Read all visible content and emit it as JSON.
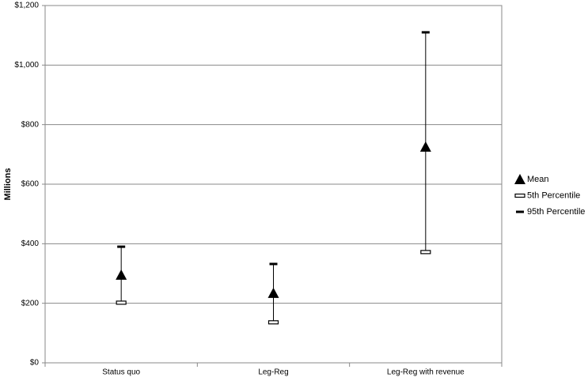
{
  "chart_data": {
    "type": "range",
    "y_label": "Millions",
    "categories": [
      "Status quo",
      "Leg-Reg",
      "Leg-Reg with revenue"
    ],
    "series": [
      {
        "name": "Mean",
        "color": "#000000",
        "marker": "triangle",
        "values": [
          295,
          234,
          725
        ]
      },
      {
        "name": "5th Percentile",
        "color": "#000000",
        "marker": "hollow-dash",
        "values": [
          202,
          136,
          372
        ]
      },
      {
        "name": "95th Percentile",
        "color": "#000000",
        "marker": "dash",
        "values": [
          390,
          332,
          1110
        ]
      }
    ],
    "ylim": [
      0,
      1200
    ],
    "yticks": [
      {
        "value": 0,
        "label": "$0"
      },
      {
        "value": 200,
        "label": "$200"
      },
      {
        "value": 400,
        "label": "$400"
      },
      {
        "value": 600,
        "label": "$600"
      },
      {
        "value": 800,
        "label": "$800"
      },
      {
        "value": 1000,
        "label": "$1,000"
      },
      {
        "value": 1200,
        "label": "$1,200"
      }
    ],
    "grid": true
  }
}
